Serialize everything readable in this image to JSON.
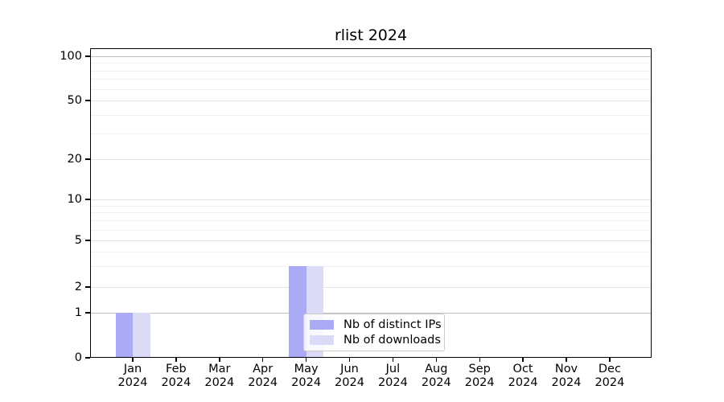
{
  "chart_data": {
    "type": "bar",
    "title": "rlist 2024",
    "categories": [
      "Jan 2024",
      "Feb 2024",
      "Mar 2024",
      "Apr 2024",
      "May 2024",
      "Jun 2024",
      "Jul 2024",
      "Aug 2024",
      "Sep 2024",
      "Oct 2024",
      "Nov 2024",
      "Dec 2024"
    ],
    "month_names": [
      "Jan",
      "Feb",
      "Mar",
      "Apr",
      "May",
      "Jun",
      "Jul",
      "Aug",
      "Sep",
      "Oct",
      "Nov",
      "Dec"
    ],
    "year_label": "2024",
    "series": [
      {
        "name": "Nb of distinct IPs",
        "color": "#aaaaf5",
        "values": [
          1,
          0,
          0,
          0,
          3,
          0,
          0,
          0,
          0,
          0,
          0,
          0
        ]
      },
      {
        "name": "Nb of downloads",
        "color": "#dbdbf8",
        "values": [
          1,
          0,
          0,
          0,
          3,
          0,
          0,
          0,
          0,
          0,
          0,
          0
        ]
      }
    ],
    "y_axis": {
      "scale": "symlog",
      "range": [
        0,
        100
      ],
      "ticks": [
        0,
        1,
        2,
        5,
        10,
        20,
        50,
        100
      ],
      "tick_labels": [
        "0",
        "1",
        "2",
        "5",
        "10",
        "20",
        "50",
        "100"
      ],
      "minor_ticks": [
        3,
        4,
        6,
        7,
        8,
        9,
        30,
        40,
        60,
        70,
        80,
        90
      ]
    },
    "x_axis": {
      "label_lines": 2
    },
    "grid": true,
    "legend": {
      "position": "lower-center-inside"
    },
    "colors": {
      "major_grid_strong": "#c0c0c0",
      "major_grid": "#e2e2e2",
      "minor_grid": "#f0f0f0",
      "axis": "#000000",
      "background": "#ffffff"
    }
  }
}
